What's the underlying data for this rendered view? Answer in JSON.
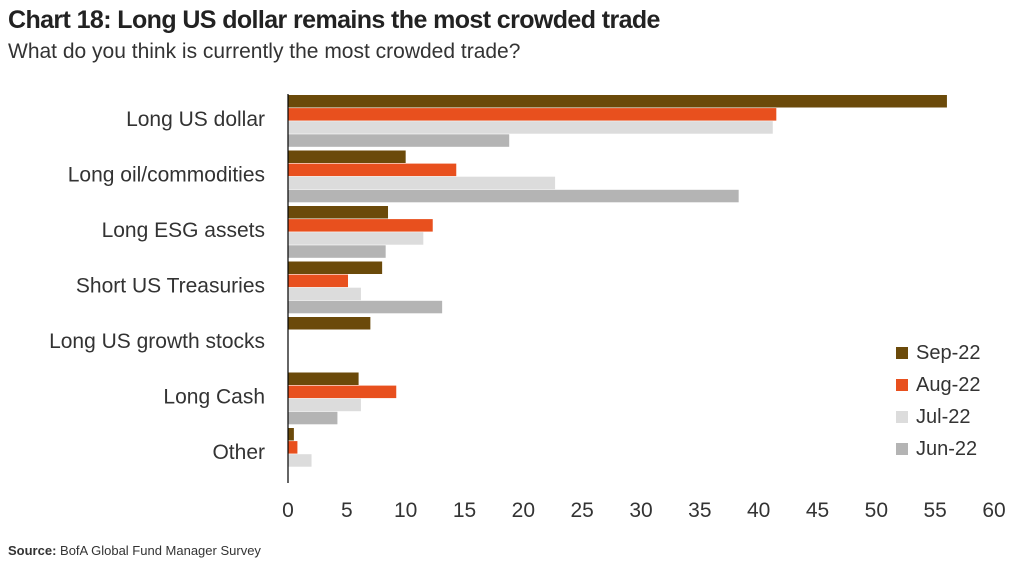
{
  "header": {
    "title": "Chart 18: Long US dollar remains the most crowded trade",
    "subtitle": "What do you think is currently the most crowded trade?"
  },
  "footer": {
    "source_label": "Source:",
    "source_text": "BofA Global Fund Manager Survey"
  },
  "chart_data": {
    "type": "bar",
    "orientation": "horizontal",
    "title": "Chart 18: Long US dollar remains the most crowded trade",
    "subtitle": "What do you think is currently the most crowded trade?",
    "categories": [
      "Long US dollar",
      "Long oil/commodities",
      "Long ESG assets",
      "Short US Treasuries",
      "Long US growth stocks",
      "Long Cash",
      "Other"
    ],
    "series": [
      {
        "name": "Sep-22",
        "color": "#6b4a0a",
        "values": [
          56,
          10,
          8.5,
          8,
          7,
          6,
          0.5
        ]
      },
      {
        "name": "Aug-22",
        "color": "#e8501e",
        "values": [
          41.5,
          14.3,
          12.3,
          5.1,
          null,
          9.2,
          0.8
        ]
      },
      {
        "name": "Jul-22",
        "color": "#dcdcdc",
        "values": [
          41.2,
          22.7,
          11.5,
          6.2,
          null,
          6.2,
          2
        ]
      },
      {
        "name": "Jun-22",
        "color": "#b4b4b4",
        "values": [
          18.8,
          38.3,
          8.3,
          13.1,
          null,
          4.2,
          null
        ]
      }
    ],
    "xlim": [
      0,
      60
    ],
    "xticks": [
      0,
      5,
      10,
      15,
      20,
      25,
      30,
      35,
      40,
      45,
      50,
      55,
      60
    ],
    "grid": false,
    "legend": "right"
  }
}
